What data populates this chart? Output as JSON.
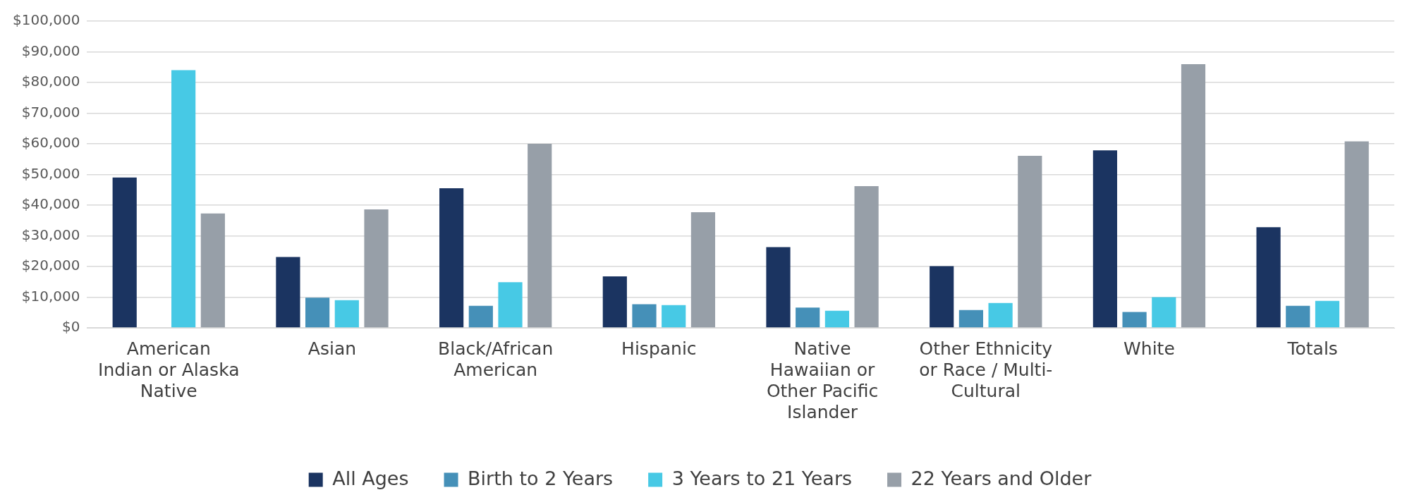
{
  "chart_data": {
    "type": "bar",
    "categories": [
      "American\nIndian or Alaska\nNative",
      "Asian",
      "Black/African\nAmerican",
      "Hispanic",
      "Native\nHawaiian or\nOther Pacific\nIslander",
      "Other Ethnicity\nor Race / Multi-\nCultural",
      "White",
      "Totals"
    ],
    "series": [
      {
        "name": "All Ages",
        "color": "#1b3461",
        "values": [
          49000,
          23100,
          45500,
          16800,
          26300,
          20100,
          57900,
          32800
        ]
      },
      {
        "name": "Birth to 2 Years",
        "color": "#4590b8",
        "values": [
          null,
          9800,
          7200,
          7700,
          6600,
          5800,
          5200,
          7200
        ]
      },
      {
        "name": "3 Years to 21 Years",
        "color": "#47c9e5",
        "values": [
          84000,
          9000,
          14900,
          7400,
          5600,
          8100,
          10000,
          8800
        ]
      },
      {
        "name": "22 Years and Older",
        "color": "#979fa8",
        "values": [
          37300,
          38600,
          60000,
          37700,
          46200,
          56100,
          86000,
          60800
        ]
      }
    ],
    "ylim": [
      0,
      100000
    ],
    "yticks": [
      {
        "value": 0,
        "label": "$0"
      },
      {
        "value": 10000,
        "label": "$10,000"
      },
      {
        "value": 20000,
        "label": "$20,000"
      },
      {
        "value": 30000,
        "label": "$30,000"
      },
      {
        "value": 40000,
        "label": "$40,000"
      },
      {
        "value": 50000,
        "label": "$50,000"
      },
      {
        "value": 60000,
        "label": "$60,000"
      },
      {
        "value": 70000,
        "label": "$70,000"
      },
      {
        "value": 80000,
        "label": "$80,000"
      },
      {
        "value": 90000,
        "label": "$90,000"
      },
      {
        "value": 100000,
        "label": "$100,000"
      }
    ],
    "grid": "y",
    "legend": "bottom"
  }
}
